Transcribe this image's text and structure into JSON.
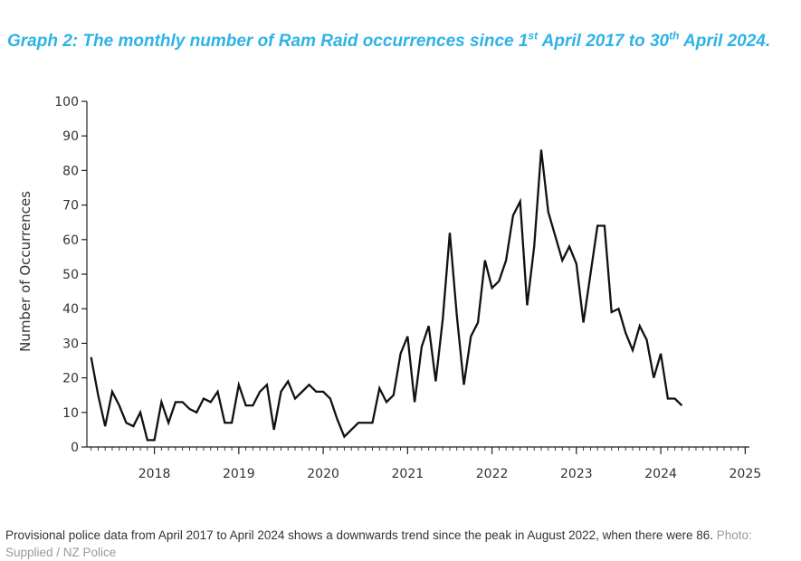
{
  "title": {
    "part1": "Graph 2: The monthly number of Ram Raid occurrences since 1",
    "sup1": "st",
    "part2": " April 2017 to 30",
    "sup2": "th",
    "part3": " April 2024."
  },
  "caption": {
    "text": "Provisional police data from April 2017 to April 2024 shows a downwards trend since the peak in August 2022, when there were 86.",
    "credit": "Photo: Supplied / NZ Police"
  },
  "colors": {
    "title": "#2fb3e6",
    "line": "#111111"
  },
  "chart_data": {
    "type": "line",
    "ylabel": "Number of Occurrences",
    "xlabel": "",
    "xlim": [
      2017.2,
      2025.05
    ],
    "ylim": [
      0,
      100
    ],
    "x_ticks": [
      2018,
      2019,
      2020,
      2021,
      2022,
      2023,
      2024,
      2025
    ],
    "y_ticks": [
      0,
      10,
      20,
      30,
      40,
      50,
      60,
      70,
      80,
      90,
      100
    ],
    "grid": false,
    "start": "2017-04",
    "series": [
      {
        "values": [
          26,
          15,
          6,
          16,
          12,
          7,
          6,
          10,
          2,
          2,
          13,
          7,
          13,
          13,
          11,
          10,
          14,
          13,
          16,
          7,
          7,
          18,
          12,
          12,
          16,
          18,
          5,
          16,
          19,
          14,
          16,
          18,
          16,
          16,
          14,
          8,
          3,
          5,
          7,
          7,
          7,
          17,
          13,
          15,
          27,
          32,
          13,
          29,
          35,
          19,
          37,
          62,
          38,
          18,
          32,
          36,
          54,
          46,
          48,
          54,
          67,
          71,
          41,
          58,
          86,
          68,
          61,
          54,
          58,
          53,
          36,
          50,
          64,
          64,
          39,
          40,
          33,
          28,
          35,
          31,
          20,
          27,
          14,
          14,
          12
        ]
      }
    ]
  }
}
